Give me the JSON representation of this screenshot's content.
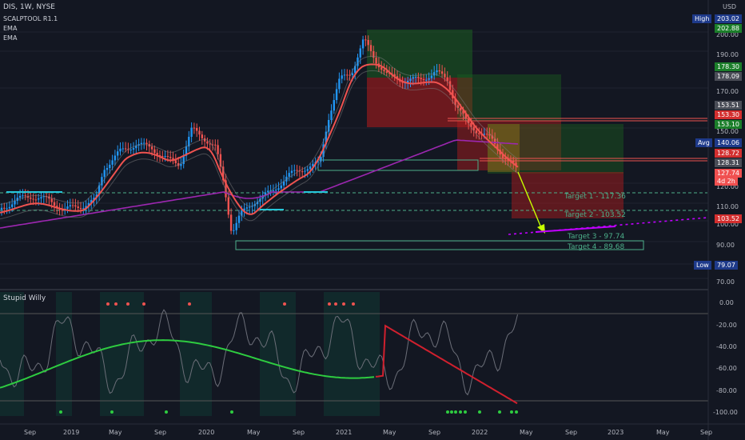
{
  "header": {
    "symbol": "DIS, 1W, NYSE",
    "currency": "USD",
    "indicators": [
      "SCALPTOOL R1.1",
      "EMA",
      "EMA"
    ]
  },
  "price_axis": {
    "ticks": [
      "200.00",
      "190.00",
      "170.00",
      "150.00",
      "120.00",
      "110.00",
      "100.00",
      "90.00",
      "70.00"
    ],
    "badges": {
      "high_label": "High",
      "high_value": "203.02",
      "b1": "202.88",
      "b2": "178.30",
      "b3": "178.09",
      "b4": "153.51",
      "b5": "153.30",
      "b6": "153.10",
      "avg_label": "Avg",
      "avg_value": "140.06",
      "b7": "128.72",
      "b8": "128.31",
      "current": "127.74",
      "countdown": "4d 2h",
      "b9": "103.52",
      "low_label": "Low",
      "low_value": "79.07"
    }
  },
  "targets": [
    "Target 1 - 117.36",
    "Target 2 - 103.52",
    "Target 3 - 97.74",
    "Target 4 - 89.68"
  ],
  "indicator_panel": {
    "title": "Stupid Willy",
    "ticks": [
      "0.00",
      "-20.00",
      "-40.00",
      "-60.00",
      "-80.00",
      "-100.00"
    ]
  },
  "time_axis": [
    "Sep",
    "2019",
    "May",
    "Sep",
    "2020",
    "May",
    "Sep",
    "2021",
    "May",
    "Sep",
    "2022",
    "May",
    "Sep",
    "2023",
    "May",
    "Sep"
  ],
  "colors": {
    "background": "#131722",
    "up": "#2196f3",
    "down": "#ef5350",
    "ema_fast": "#ef5350",
    "ema_slow": "#9c27b0",
    "target": "#4caf8a"
  }
}
